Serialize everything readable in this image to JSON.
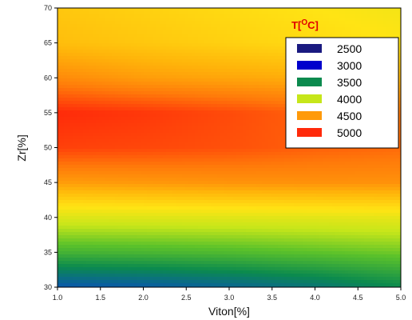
{
  "chart_data": {
    "type": "heatmap",
    "title": "",
    "xlabel": "Viton[%]",
    "ylabel": "Zr[%]",
    "xlim": [
      1.0,
      5.0
    ],
    "ylim": [
      30,
      70
    ],
    "x_ticks": [
      "1.0",
      "1.5",
      "2.0",
      "2.5",
      "3.0",
      "3.5",
      "4.0",
      "4.5",
      "5.0"
    ],
    "y_ticks": [
      "30",
      "35",
      "40",
      "45",
      "50",
      "55",
      "60",
      "65",
      "70"
    ],
    "legend": {
      "title_main": "T[",
      "title_sup": "O",
      "title_unit": "C]",
      "placement": "top-right",
      "entries": [
        {
          "label": "2500",
          "color": "#1a1a80"
        },
        {
          "label": "3000",
          "color": "#0000cc"
        },
        {
          "label": "3500",
          "color": "#0b8a4e"
        },
        {
          "label": "4000",
          "color": "#c6e61a"
        },
        {
          "label": "4500",
          "color": "#ff9a0a"
        },
        {
          "label": "5000",
          "color": "#ff2a0a"
        }
      ]
    },
    "color_scale": [
      {
        "value": 2500,
        "color": "#1a1a80"
      },
      {
        "value": 3000,
        "color": "#0a4fbd"
      },
      {
        "value": 3400,
        "color": "#0b8a4e"
      },
      {
        "value": 3750,
        "color": "#5cc22a"
      },
      {
        "value": 4000,
        "color": "#c6e61a"
      },
      {
        "value": 4250,
        "color": "#ffe414"
      },
      {
        "value": 4500,
        "color": "#ffb40a"
      },
      {
        "value": 4750,
        "color": "#ff7a0a"
      },
      {
        "value": 5000,
        "color": "#ff2a0a"
      }
    ],
    "field": {
      "x": [
        1.0,
        2.0,
        3.0,
        4.0,
        5.0
      ],
      "y": [
        30,
        35,
        40,
        45,
        50,
        55,
        60,
        65,
        70
      ],
      "z": [
        [
          3050,
          3080,
          3150,
          3250,
          3400
        ],
        [
          3650,
          3670,
          3700,
          3750,
          3800
        ],
        [
          4100,
          4110,
          4120,
          4130,
          4150
        ],
        [
          4600,
          4620,
          4640,
          4650,
          4650
        ],
        [
          4930,
          4910,
          4880,
          4830,
          4800
        ],
        [
          5000,
          4960,
          4900,
          4820,
          4750
        ],
        [
          4680,
          4600,
          4560,
          4520,
          4480
        ],
        [
          4450,
          4400,
          4350,
          4300,
          4250
        ],
        [
          4400,
          4350,
          4300,
          4250,
          4200
        ]
      ]
    }
  }
}
